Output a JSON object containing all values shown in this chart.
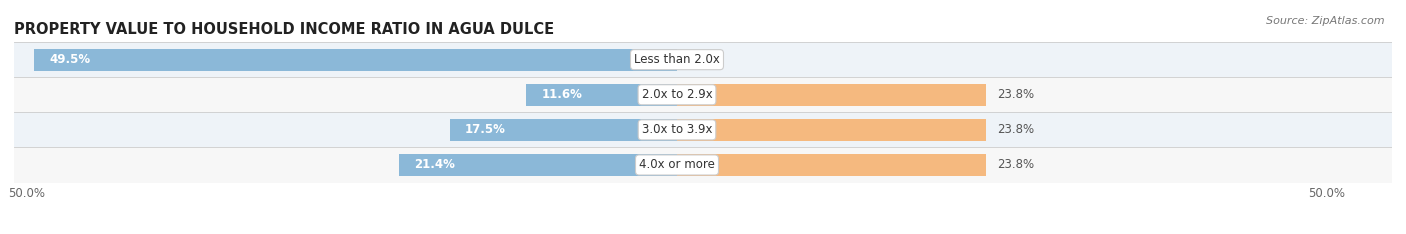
{
  "title": "PROPERTY VALUE TO HOUSEHOLD INCOME RATIO IN AGUA DULCE",
  "source": "Source: ZipAtlas.com",
  "categories": [
    "Less than 2.0x",
    "2.0x to 2.9x",
    "3.0x to 3.9x",
    "4.0x or more"
  ],
  "without_mortgage": [
    49.5,
    11.6,
    17.5,
    21.4
  ],
  "with_mortgage": [
    0.0,
    23.8,
    23.8,
    23.8
  ],
  "color_without": "#8BB8D8",
  "color_with": "#F5B97F",
  "xlim": 50.0,
  "title_fontsize": 10.5,
  "source_fontsize": 8,
  "label_fontsize": 8.5,
  "tick_fontsize": 8.5,
  "legend_fontsize": 8.5,
  "bar_height": 0.62,
  "figsize": [
    14.06,
    2.34
  ],
  "dpi": 100
}
